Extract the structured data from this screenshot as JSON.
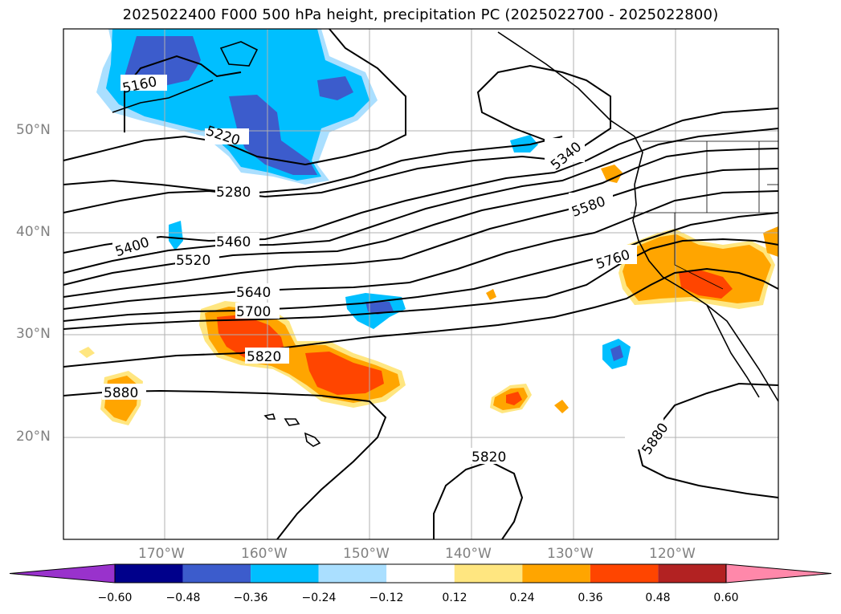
{
  "title": "2025022400 F000 500 hPa height, precipitation PC (2025022700 - 2025022800)",
  "lat_labels": [
    "50°N",
    "40°N",
    "30°N",
    "20°N"
  ],
  "lon_labels": [
    "170°W",
    "160°W",
    "150°W",
    "140°W",
    "130°W",
    "120°W"
  ],
  "contour_labels": [
    "5160",
    "5220",
    "5280",
    "5340",
    "5400",
    "5460",
    "5520",
    "5580",
    "5640",
    "5700",
    "5760",
    "5820",
    "5880",
    "5820",
    "5880"
  ],
  "colorbar": {
    "ticks": [
      "−0.60",
      "−0.48",
      "−0.36",
      "−0.24",
      "−0.12",
      "0.12",
      "0.24",
      "0.36",
      "0.48",
      "0.60"
    ],
    "colors": [
      "#9932cc",
      "#00008b",
      "#3c5ccc",
      "#00bfff",
      "#aadfff",
      "#ffffff",
      "#ffe680",
      "#ffa500",
      "#ff4500",
      "#b22222",
      "#ff88aa"
    ]
  },
  "colors": {
    "contour": "#000000",
    "grid": "#b0b0b0",
    "coast": "#000000"
  }
}
